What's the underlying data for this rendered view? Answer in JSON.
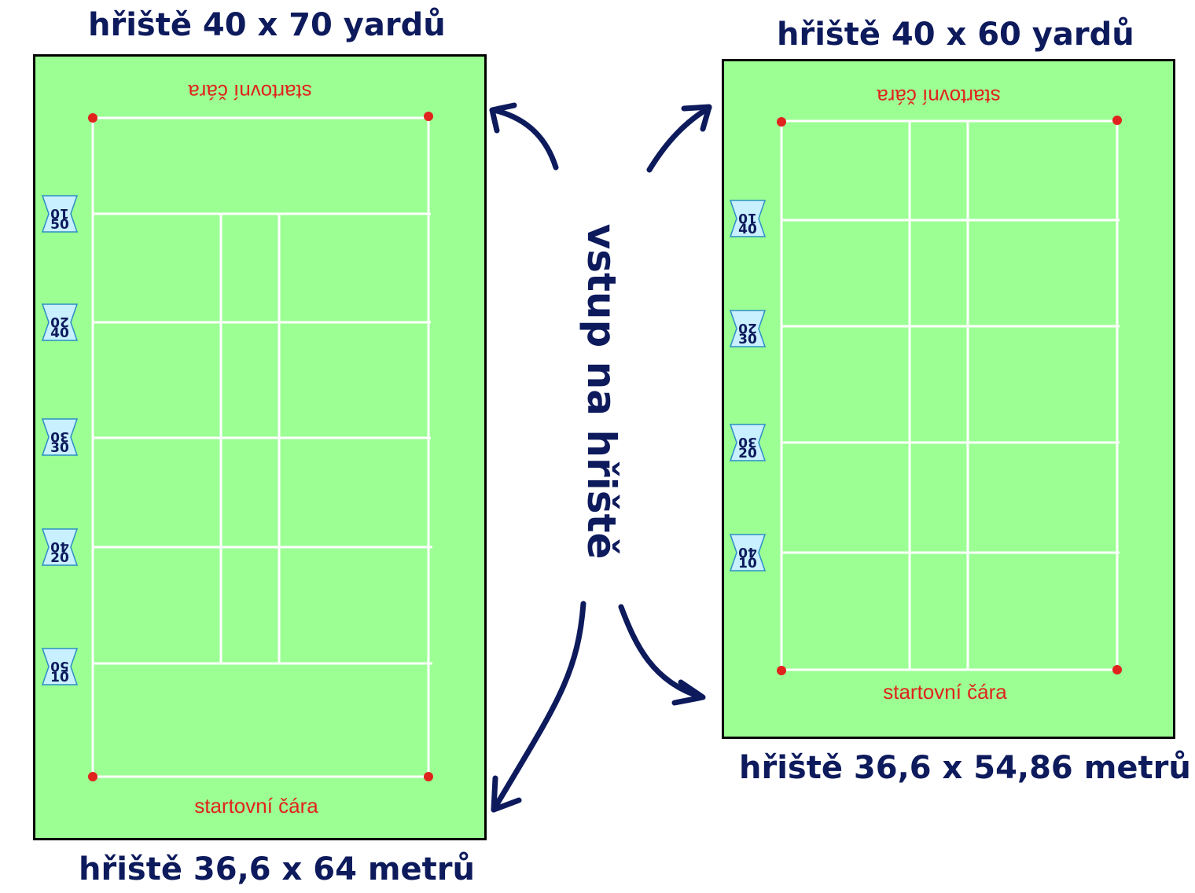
{
  "left_field": {
    "title_top": "hřiště 40 x 70 yardů",
    "title_bottom": "hřiště 36,6 x 64 metrů",
    "start_line_top": "startovní čára",
    "start_line_bottom": "startovní čára",
    "markers": [
      {
        "upper": "10",
        "lower": "50"
      },
      {
        "upper": "20",
        "lower": "40"
      },
      {
        "upper": "30",
        "lower": "30"
      },
      {
        "upper": "40",
        "lower": "20"
      },
      {
        "upper": "50",
        "lower": "10"
      }
    ]
  },
  "right_field": {
    "title_top": "hřiště 40 x 60 yardů",
    "title_bottom": "hřiště 36,6 x 54,86 metrů",
    "start_line_top": "startovní čára",
    "start_line_bottom": "startovní čára",
    "markers": [
      {
        "upper": "10",
        "lower": "40"
      },
      {
        "upper": "20",
        "lower": "30"
      },
      {
        "upper": "30",
        "lower": "20"
      },
      {
        "upper": "40",
        "lower": "10"
      }
    ]
  },
  "entry_label": "vstup na hřiště",
  "colors": {
    "field": "#9cff94",
    "lines": "#ffffff",
    "corner_dot": "#e0231d",
    "text": "#0d1a5c",
    "start_text": "#e0231d",
    "marker_fill": "#c9f0ff"
  }
}
